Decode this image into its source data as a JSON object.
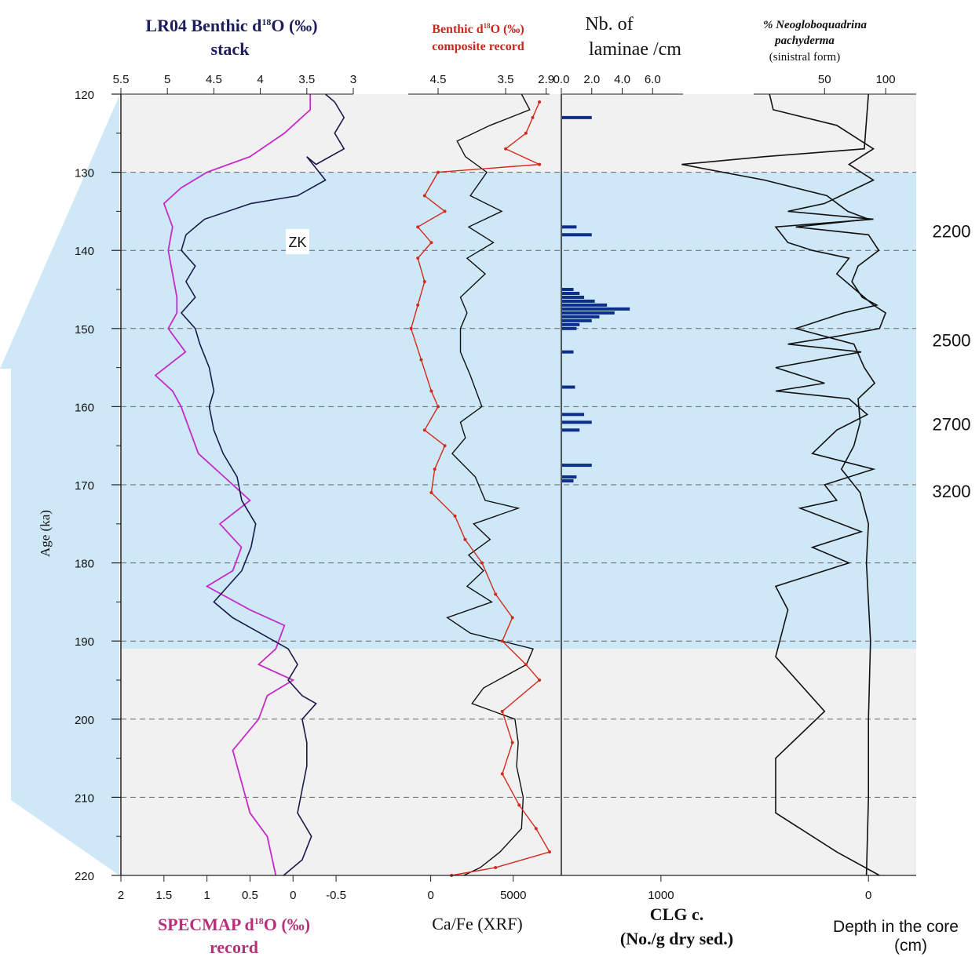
{
  "chart_data": {
    "type": "line",
    "ylabel": "Age (ka)",
    "y_ticks": [
      "120",
      "130",
      "140",
      "150",
      "160",
      "170",
      "180",
      "190",
      "200",
      "210",
      "220"
    ],
    "ylim": [
      120,
      220
    ],
    "shading": {
      "color": "#cfe8f7",
      "from": 130,
      "to": 191,
      "outside_color": "#f1f1f1"
    },
    "zk_label": "ZK",
    "panels": {
      "lr04": {
        "title_main": "LR04 Benthic d",
        "title_sup": "18",
        "title_tail": "O (‰)",
        "title_line2": "stack",
        "title_color": "#1d1d5e",
        "tick_labels": [
          "5.5",
          "5",
          "4.5",
          "4",
          "3.5",
          "3"
        ],
        "tick_values": [
          5.5,
          5,
          4.5,
          4,
          3.5,
          3
        ],
        "xlim": [
          5.5,
          3.0
        ],
        "color": "#1a1a4a",
        "points": [
          [
            3.3,
            120
          ],
          [
            3.2,
            121
          ],
          [
            3.1,
            123
          ],
          [
            3.2,
            125
          ],
          [
            3.1,
            127
          ],
          [
            3.4,
            129
          ],
          [
            3.5,
            128
          ],
          [
            3.3,
            131
          ],
          [
            3.6,
            133
          ],
          [
            4.1,
            134
          ],
          [
            4.6,
            136
          ],
          [
            4.8,
            138
          ],
          [
            4.85,
            140
          ],
          [
            4.7,
            142
          ],
          [
            4.8,
            144
          ],
          [
            4.7,
            146
          ],
          [
            4.85,
            148
          ],
          [
            4.7,
            150
          ],
          [
            4.65,
            152
          ],
          [
            4.55,
            155
          ],
          [
            4.5,
            158
          ],
          [
            4.55,
            160
          ],
          [
            4.5,
            163
          ],
          [
            4.4,
            166
          ],
          [
            4.25,
            169
          ],
          [
            4.2,
            172
          ],
          [
            4.05,
            175
          ],
          [
            4.1,
            178
          ],
          [
            4.2,
            181
          ],
          [
            4.5,
            185
          ],
          [
            4.3,
            187
          ],
          [
            4.0,
            189
          ],
          [
            3.7,
            191
          ],
          [
            3.6,
            193
          ],
          [
            3.7,
            195
          ],
          [
            3.55,
            197
          ],
          [
            3.4,
            198
          ],
          [
            3.55,
            200
          ],
          [
            3.5,
            203
          ],
          [
            3.5,
            206
          ],
          [
            3.55,
            209
          ],
          [
            3.6,
            212
          ],
          [
            3.45,
            215
          ],
          [
            3.55,
            218
          ],
          [
            3.75,
            220
          ]
        ]
      },
      "specmap": {
        "title_main": "SPECMAP  d",
        "title_sup": "18",
        "title_tail": "O (‰)",
        "title_line2": "record",
        "title_color": "#b8307a",
        "tick_labels": [
          "2",
          "1.5",
          "1",
          "0.5",
          "0",
          "-0.5"
        ],
        "tick_values": [
          2,
          1.5,
          1,
          0.5,
          0,
          -0.5
        ],
        "xlim": [
          2.0,
          -0.7
        ],
        "color": "#c42bc9",
        "points": [
          [
            -0.2,
            120
          ],
          [
            -0.2,
            122
          ],
          [
            0.1,
            125
          ],
          [
            0.5,
            128
          ],
          [
            1.0,
            130
          ],
          [
            1.3,
            132
          ],
          [
            1.5,
            134
          ],
          [
            1.4,
            137
          ],
          [
            1.45,
            140
          ],
          [
            1.4,
            143
          ],
          [
            1.35,
            146
          ],
          [
            1.35,
            148
          ],
          [
            1.45,
            150
          ],
          [
            1.25,
            153
          ],
          [
            1.6,
            156
          ],
          [
            1.4,
            158
          ],
          [
            1.3,
            160
          ],
          [
            1.2,
            163
          ],
          [
            1.1,
            166
          ],
          [
            0.8,
            169
          ],
          [
            0.5,
            172
          ],
          [
            0.85,
            175
          ],
          [
            0.6,
            178
          ],
          [
            0.7,
            181
          ],
          [
            1.0,
            183
          ],
          [
            0.5,
            186
          ],
          [
            0.1,
            188
          ],
          [
            0.2,
            191
          ],
          [
            0.4,
            193
          ],
          [
            0.0,
            195
          ],
          [
            0.3,
            197
          ],
          [
            0.4,
            200
          ],
          [
            0.7,
            204
          ],
          [
            0.6,
            208
          ],
          [
            0.5,
            212
          ],
          [
            0.3,
            215
          ],
          [
            0.2,
            220
          ]
        ]
      },
      "benthic_composite": {
        "title_main": "Benthic d",
        "title_sup": "18",
        "title_tail": "O (‰)",
        "title_line2": "composite record",
        "title_color": "#c8281e",
        "tick_labels": [
          "4.5",
          "3.5",
          "2.9"
        ],
        "tick_values": [
          4.5,
          3.5,
          2.9
        ],
        "xlim": [
          5.0,
          2.85
        ],
        "color": "#d42a1c",
        "points": [
          [
            3.0,
            121
          ],
          [
            3.1,
            123
          ],
          [
            3.2,
            125
          ],
          [
            3.5,
            127
          ],
          [
            3.0,
            129
          ],
          [
            4.5,
            130
          ],
          [
            4.7,
            133
          ],
          [
            4.4,
            135
          ],
          [
            4.8,
            137
          ],
          [
            4.6,
            139
          ],
          [
            4.8,
            141
          ],
          [
            4.7,
            144
          ],
          [
            4.8,
            147
          ],
          [
            4.9,
            150
          ],
          [
            4.75,
            154
          ],
          [
            4.6,
            158
          ],
          [
            4.5,
            160
          ],
          [
            4.7,
            163
          ],
          [
            4.4,
            165
          ],
          [
            4.55,
            168
          ],
          [
            4.6,
            171
          ],
          [
            4.25,
            174
          ],
          [
            4.1,
            177
          ],
          [
            3.85,
            180
          ],
          [
            3.65,
            184
          ],
          [
            3.4,
            187
          ],
          [
            3.55,
            190
          ],
          [
            3.2,
            193
          ],
          [
            3.0,
            195
          ],
          [
            3.55,
            199
          ],
          [
            3.4,
            203
          ],
          [
            3.55,
            207
          ],
          [
            3.3,
            211
          ],
          [
            3.05,
            214
          ],
          [
            2.85,
            217
          ],
          [
            3.65,
            219
          ],
          [
            4.3,
            220
          ]
        ]
      },
      "cafe": {
        "title": "Ca/Fe (XRF)",
        "tick_labels": [
          "0",
          "5000"
        ],
        "tick_values": [
          0,
          5000
        ],
        "xlim": [
          -1600,
          7200
        ],
        "color": "#111111",
        "points": [
          [
            5500,
            120
          ],
          [
            6000,
            122
          ],
          [
            3600,
            124
          ],
          [
            1600,
            126
          ],
          [
            2100,
            128
          ],
          [
            3400,
            130
          ],
          [
            2400,
            133
          ],
          [
            4300,
            135
          ],
          [
            2300,
            137
          ],
          [
            3800,
            139
          ],
          [
            2200,
            141
          ],
          [
            3300,
            143
          ],
          [
            1800,
            146
          ],
          [
            2200,
            148
          ],
          [
            1800,
            150
          ],
          [
            1800,
            153
          ],
          [
            2400,
            156
          ],
          [
            3100,
            160
          ],
          [
            1800,
            162
          ],
          [
            2100,
            164
          ],
          [
            1300,
            166
          ],
          [
            2700,
            169
          ],
          [
            3300,
            172
          ],
          [
            5300,
            173
          ],
          [
            2600,
            175
          ],
          [
            3600,
            177
          ],
          [
            2300,
            179
          ],
          [
            3200,
            181
          ],
          [
            2200,
            183
          ],
          [
            3700,
            185
          ],
          [
            1000,
            187
          ],
          [
            2400,
            189
          ],
          [
            6200,
            191
          ],
          [
            5800,
            193
          ],
          [
            3200,
            196
          ],
          [
            2500,
            198
          ],
          [
            5100,
            200
          ],
          [
            5300,
            203
          ],
          [
            5200,
            206
          ],
          [
            5600,
            210
          ],
          [
            5500,
            214
          ],
          [
            4200,
            217
          ],
          [
            3000,
            219
          ],
          [
            2000,
            220
          ]
        ]
      },
      "laminae": {
        "title_line1": "Nb. of",
        "title_line2": "laminae /cm",
        "tick_labels": [
          "0.0",
          "2.0",
          "4.0",
          "6.0"
        ],
        "tick_values": [
          0,
          2,
          4,
          6
        ],
        "xlim": [
          0,
          8
        ],
        "color": "#0b2f8a",
        "bars": [
          [
            123,
            2.0
          ],
          [
            137,
            1.0
          ],
          [
            138,
            2.0
          ],
          [
            145,
            0.8
          ],
          [
            145.5,
            1.2
          ],
          [
            146,
            1.5
          ],
          [
            146.5,
            2.2
          ],
          [
            147,
            3.0
          ],
          [
            147.5,
            4.5
          ],
          [
            148,
            3.5
          ],
          [
            148.5,
            2.5
          ],
          [
            149,
            2.0
          ],
          [
            149.5,
            1.2
          ],
          [
            150,
            1.0
          ],
          [
            153,
            0.8
          ],
          [
            157.5,
            0.9
          ],
          [
            161,
            1.5
          ],
          [
            162,
            2.0
          ],
          [
            163,
            1.2
          ],
          [
            167.5,
            2.0
          ],
          [
            169,
            1.0
          ],
          [
            169.5,
            0.8
          ]
        ]
      },
      "clg": {
        "title_line1": "CLG c.",
        "title_line2": "(No./g dry sed.)",
        "tick_labels": [
          "1000",
          "0"
        ],
        "tick_values": [
          1000,
          0
        ],
        "xlim": [
          1480,
          -230
        ],
        "color": "#111111",
        "points": [
          [
            0,
            120
          ],
          [
            20,
            127
          ],
          [
            500,
            128
          ],
          [
            900,
            129
          ],
          [
            500,
            131
          ],
          [
            200,
            133
          ],
          [
            100,
            135
          ],
          [
            0,
            136
          ],
          [
            350,
            137
          ],
          [
            0,
            138
          ],
          [
            -50,
            140
          ],
          [
            50,
            142
          ],
          [
            80,
            144
          ],
          [
            30,
            146
          ],
          [
            -40,
            147
          ],
          [
            120,
            148
          ],
          [
            350,
            150
          ],
          [
            70,
            152
          ],
          [
            20,
            155
          ],
          [
            -30,
            157
          ],
          [
            50,
            159
          ],
          [
            40,
            162
          ],
          [
            70,
            165
          ],
          [
            130,
            168
          ],
          [
            40,
            171
          ],
          [
            0,
            175
          ],
          [
            10,
            180
          ],
          [
            0,
            185
          ],
          [
            -10,
            190
          ],
          [
            0,
            200
          ],
          [
            0,
            210
          ],
          [
            10,
            220
          ]
        ]
      },
      "pachyderma": {
        "title_line1": "% Neogloboquadrina",
        "title_line2": "pachyderma",
        "title_line3": "(sinistral form)",
        "tick_labels": [
          "50",
          "100"
        ],
        "tick_values": [
          50,
          100
        ],
        "xlim": [
          -8,
          125
        ],
        "color": "#111111",
        "points": [
          [
            5,
            120
          ],
          [
            8,
            122
          ],
          [
            60,
            124
          ],
          [
            90,
            127
          ],
          [
            70,
            129
          ],
          [
            90,
            131
          ],
          [
            50,
            134
          ],
          [
            20,
            135
          ],
          [
            90,
            136
          ],
          [
            10,
            137
          ],
          [
            20,
            139
          ],
          [
            40,
            140
          ],
          [
            70,
            141
          ],
          [
            60,
            143
          ],
          [
            75,
            145
          ],
          [
            90,
            147
          ],
          [
            100,
            148
          ],
          [
            95,
            150
          ],
          [
            60,
            151
          ],
          [
            20,
            152
          ],
          [
            80,
            153
          ],
          [
            10,
            155
          ],
          [
            50,
            157
          ],
          [
            10,
            158
          ],
          [
            70,
            159
          ],
          [
            85,
            161
          ],
          [
            60,
            163
          ],
          [
            40,
            166
          ],
          [
            90,
            168
          ],
          [
            50,
            170
          ],
          [
            60,
            172
          ],
          [
            30,
            173
          ],
          [
            80,
            176
          ],
          [
            40,
            178
          ],
          [
            70,
            180
          ],
          [
            10,
            183
          ],
          [
            20,
            186
          ],
          [
            10,
            192
          ],
          [
            50,
            199
          ],
          [
            10,
            205
          ],
          [
            10,
            212
          ],
          [
            60,
            217
          ],
          [
            95,
            220
          ]
        ]
      }
    },
    "right_axis": {
      "label_line1": "Depth in the core",
      "label_line2": "(cm)",
      "marks": [
        {
          "label": "2200",
          "age": 137.5
        },
        {
          "label": "2500",
          "age": 151.5
        },
        {
          "label": "2700",
          "age": 162.2
        },
        {
          "label": "3200",
          "age": 170.8
        }
      ]
    }
  }
}
